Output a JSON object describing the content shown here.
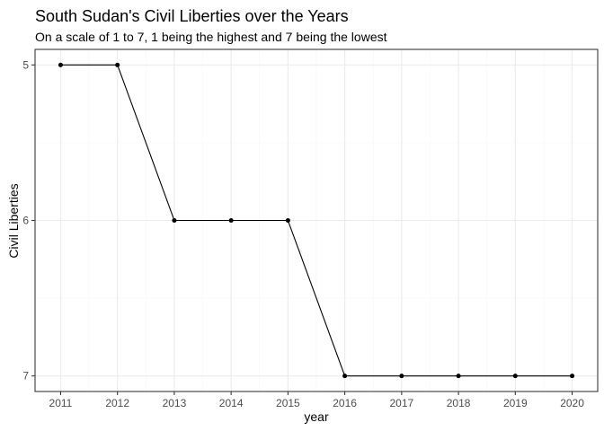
{
  "chart_data": {
    "type": "line",
    "title": "South Sudan's Civil Liberties over the Years",
    "subtitle": "On a scale of 1 to 7, 1 being the highest and 7 being the lowest",
    "xlabel": "year",
    "ylabel": "Civil Liberties",
    "x": [
      2011,
      2012,
      2013,
      2014,
      2015,
      2016,
      2017,
      2018,
      2019,
      2020
    ],
    "series": [
      {
        "values": [
          5,
          5,
          6,
          6,
          6,
          7,
          7,
          7,
          7,
          7
        ]
      }
    ],
    "x_ticks": [
      "2011",
      "2012",
      "2013",
      "2014",
      "2015",
      "2016",
      "2017",
      "2018",
      "2019",
      "2020"
    ],
    "y_ticks": [
      "5",
      "6",
      "7"
    ],
    "y_tick_values": [
      5,
      6,
      7
    ],
    "xlim": [
      2010.55,
      2020.45
    ],
    "ylim": [
      4.9,
      7.1
    ],
    "y_reversed": true,
    "grid": true,
    "theme": "bw",
    "colors": {
      "line": "#000000",
      "point": "#000000",
      "grid_major": "#ebebeb",
      "grid_minor": "#f5f5f5",
      "panel_border": "#333333"
    }
  }
}
